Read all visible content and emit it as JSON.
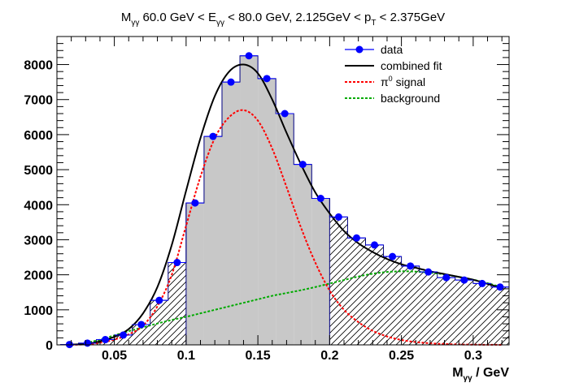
{
  "chart_data": {
    "type": "bar",
    "title": {
      "parts": [
        "M",
        "γγ",
        " 60.0 GeV < E",
        "γγ",
        " < 80.0 GeV, 2.125GeV < p",
        "T",
        " < 2.375GeV"
      ]
    },
    "xlabel": {
      "main": "M",
      "sub": "γγ",
      "rest": " / GeV"
    },
    "ylabel": "",
    "xlim": [
      0.01,
      0.325
    ],
    "ylim": [
      0,
      8800
    ],
    "x_ticks": [
      0.05,
      0.1,
      0.15,
      0.2,
      0.25,
      0.3
    ],
    "x_tick_labels": [
      "0.05",
      "0.1",
      "0.15",
      "0.2",
      "0.25",
      "0.3"
    ],
    "y_ticks": [
      0,
      1000,
      2000,
      3000,
      4000,
      5000,
      6000,
      7000,
      8000
    ],
    "y_tick_labels": [
      "0",
      "1000",
      "2000",
      "3000",
      "4000",
      "5000",
      "6000",
      "7000",
      "8000"
    ],
    "bin_width": 0.0125,
    "bin_centers": [
      0.01875,
      0.03125,
      0.04375,
      0.05625,
      0.06875,
      0.08125,
      0.09375,
      0.10625,
      0.11875,
      0.13125,
      0.14375,
      0.15625,
      0.16875,
      0.18125,
      0.19375,
      0.20625,
      0.21875,
      0.23125,
      0.24375,
      0.25625,
      0.26875,
      0.28125,
      0.29375,
      0.30625,
      0.31875
    ],
    "signal_region": [
      0.1,
      0.2
    ],
    "series": [
      {
        "name": "data",
        "style": "markers",
        "color": "#0000ff",
        "values": [
          10,
          50,
          150,
          280,
          580,
          1270,
          2350,
          4050,
          5950,
          7500,
          8250,
          7600,
          6600,
          5150,
          4180,
          3650,
          3050,
          2850,
          2520,
          2250,
          2080,
          1920,
          1850,
          1750,
          1650
        ]
      },
      {
        "name": "combined fit",
        "style": "solid",
        "color": "#000000",
        "x": [
          0.02,
          0.03,
          0.04,
          0.05,
          0.06,
          0.07,
          0.08,
          0.09,
          0.1,
          0.11,
          0.12,
          0.13,
          0.14,
          0.15,
          0.16,
          0.17,
          0.18,
          0.19,
          0.2,
          0.21,
          0.22,
          0.23,
          0.24,
          0.25,
          0.26,
          0.27,
          0.28,
          0.29,
          0.3,
          0.31,
          0.32
        ],
        "values": [
          10,
          30,
          100,
          230,
          450,
          900,
          1650,
          2850,
          4400,
          5900,
          7100,
          7800,
          8000,
          7750,
          7000,
          6050,
          5150,
          4350,
          3750,
          3250,
          2900,
          2650,
          2450,
          2300,
          2200,
          2100,
          2020,
          1940,
          1860,
          1740,
          1620
        ]
      },
      {
        "name": "π⁰ signal",
        "legend_parts": [
          "π",
          "0",
          " signal"
        ],
        "style": "dashed",
        "color": "#ff0000",
        "x": [
          0.02,
          0.03,
          0.04,
          0.05,
          0.06,
          0.07,
          0.08,
          0.09,
          0.1,
          0.11,
          0.12,
          0.13,
          0.14,
          0.15,
          0.16,
          0.17,
          0.18,
          0.19,
          0.2,
          0.21,
          0.22,
          0.23,
          0.24,
          0.25,
          0.26,
          0.27,
          0.28,
          0.29,
          0.3,
          0.31,
          0.32
        ],
        "values": [
          0,
          15,
          60,
          150,
          300,
          550,
          1100,
          2000,
          3400,
          4800,
          5900,
          6500,
          6700,
          6400,
          5600,
          4500,
          3350,
          2350,
          1550,
          1000,
          650,
          400,
          240,
          140,
          80,
          45,
          25,
          12,
          6,
          3,
          1
        ]
      },
      {
        "name": "background",
        "style": "dashed",
        "color": "#00aa00",
        "x": [
          0.03,
          0.04,
          0.05,
          0.06,
          0.07,
          0.08,
          0.09,
          0.1,
          0.11,
          0.12,
          0.13,
          0.14,
          0.15,
          0.16,
          0.17,
          0.18,
          0.19,
          0.2,
          0.21,
          0.22,
          0.23,
          0.24,
          0.25,
          0.26,
          0.27,
          0.28,
          0.29,
          0.3,
          0.31,
          0.32
        ],
        "values": [
          50,
          150,
          270,
          390,
          500,
          610,
          710,
          800,
          900,
          1000,
          1100,
          1200,
          1300,
          1400,
          1480,
          1560,
          1650,
          1750,
          1850,
          1950,
          2030,
          2080,
          2100,
          2090,
          2060,
          2010,
          1940,
          1860,
          1760,
          1640
        ]
      }
    ],
    "legend": {
      "position": "top-right"
    },
    "colors": {
      "signal_fill": "#c8c8c8",
      "hatch": "#000000",
      "histogram_outline": "#000080",
      "axis": "#000000"
    }
  }
}
